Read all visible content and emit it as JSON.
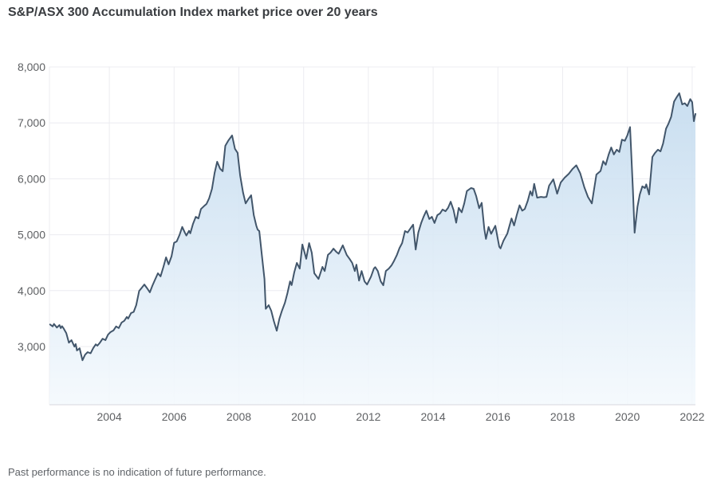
{
  "title": "S&P/ASX 300 Accumulation Index market price over 20 years",
  "footer": {
    "disclaimer": "Past performance is no indication of future performance."
  },
  "chart_data": {
    "type": "area",
    "title": "S&P/ASX 300 Accumulation Index market price over 20 years",
    "xlabel": "",
    "ylabel": "",
    "xlim": [
      2002.15,
      2022.1
    ],
    "ylim": [
      1960,
      8000
    ],
    "x_ticks": [
      2004,
      2006,
      2008,
      2010,
      2012,
      2014,
      2016,
      2018,
      2020,
      2022
    ],
    "y_ticks": [
      3000,
      4000,
      5000,
      6000,
      7000,
      8000
    ],
    "grid": true,
    "legend": false,
    "colors": {
      "line": "#42566b",
      "fill_top": "#bfd8ed",
      "fill_bottom": "#f4f9fd",
      "grid": "#ececf1",
      "axis": "#d7d7de",
      "tick_text": "#5f6164"
    },
    "series": [
      {
        "name": "S&P/ASX 300 Accumulation Index",
        "points": [
          [
            2002.17,
            3395
          ],
          [
            2002.25,
            3360
          ],
          [
            2002.29,
            3405
          ],
          [
            2002.38,
            3340
          ],
          [
            2002.46,
            3385
          ],
          [
            2002.5,
            3330
          ],
          [
            2002.54,
            3365
          ],
          [
            2002.58,
            3330
          ],
          [
            2002.67,
            3240
          ],
          [
            2002.75,
            3070
          ],
          [
            2002.83,
            3115
          ],
          [
            2002.92,
            3000
          ],
          [
            2002.96,
            3045
          ],
          [
            2003.0,
            2930
          ],
          [
            2003.08,
            2970
          ],
          [
            2003.17,
            2755
          ],
          [
            2003.25,
            2855
          ],
          [
            2003.33,
            2900
          ],
          [
            2003.42,
            2880
          ],
          [
            2003.5,
            2970
          ],
          [
            2003.58,
            3040
          ],
          [
            2003.63,
            3015
          ],
          [
            2003.71,
            3070
          ],
          [
            2003.79,
            3140
          ],
          [
            2003.88,
            3115
          ],
          [
            2003.96,
            3215
          ],
          [
            2004.04,
            3260
          ],
          [
            2004.13,
            3290
          ],
          [
            2004.21,
            3360
          ],
          [
            2004.29,
            3330
          ],
          [
            2004.38,
            3430
          ],
          [
            2004.46,
            3460
          ],
          [
            2004.54,
            3530
          ],
          [
            2004.58,
            3500
          ],
          [
            2004.67,
            3600
          ],
          [
            2004.75,
            3620
          ],
          [
            2004.83,
            3740
          ],
          [
            2004.92,
            3995
          ],
          [
            2005.0,
            4050
          ],
          [
            2005.08,
            4110
          ],
          [
            2005.17,
            4040
          ],
          [
            2005.25,
            3970
          ],
          [
            2005.33,
            4090
          ],
          [
            2005.42,
            4210
          ],
          [
            2005.5,
            4310
          ],
          [
            2005.58,
            4255
          ],
          [
            2005.67,
            4425
          ],
          [
            2005.75,
            4595
          ],
          [
            2005.83,
            4470
          ],
          [
            2005.92,
            4615
          ],
          [
            2006.0,
            4855
          ],
          [
            2006.08,
            4880
          ],
          [
            2006.17,
            5000
          ],
          [
            2006.25,
            5140
          ],
          [
            2006.33,
            5040
          ],
          [
            2006.38,
            4985
          ],
          [
            2006.46,
            5070
          ],
          [
            2006.5,
            5025
          ],
          [
            2006.58,
            5190
          ],
          [
            2006.67,
            5320
          ],
          [
            2006.75,
            5290
          ],
          [
            2006.83,
            5460
          ],
          [
            2006.92,
            5510
          ],
          [
            2007.0,
            5550
          ],
          [
            2007.08,
            5650
          ],
          [
            2007.17,
            5820
          ],
          [
            2007.25,
            6105
          ],
          [
            2007.33,
            6305
          ],
          [
            2007.42,
            6180
          ],
          [
            2007.5,
            6135
          ],
          [
            2007.58,
            6590
          ],
          [
            2007.67,
            6680
          ],
          [
            2007.79,
            6775
          ],
          [
            2007.88,
            6535
          ],
          [
            2007.96,
            6465
          ],
          [
            2008.04,
            6060
          ],
          [
            2008.13,
            5750
          ],
          [
            2008.21,
            5560
          ],
          [
            2008.29,
            5635
          ],
          [
            2008.38,
            5705
          ],
          [
            2008.46,
            5350
          ],
          [
            2008.54,
            5160
          ],
          [
            2008.58,
            5090
          ],
          [
            2008.63,
            5065
          ],
          [
            2008.71,
            4640
          ],
          [
            2008.79,
            4210
          ],
          [
            2008.83,
            3675
          ],
          [
            2008.92,
            3740
          ],
          [
            2009.0,
            3640
          ],
          [
            2009.08,
            3455
          ],
          [
            2009.17,
            3283
          ],
          [
            2009.25,
            3495
          ],
          [
            2009.33,
            3640
          ],
          [
            2009.42,
            3780
          ],
          [
            2009.5,
            3955
          ],
          [
            2009.58,
            4165
          ],
          [
            2009.63,
            4100
          ],
          [
            2009.71,
            4325
          ],
          [
            2009.79,
            4495
          ],
          [
            2009.88,
            4395
          ],
          [
            2009.96,
            4825
          ],
          [
            2010.08,
            4570
          ],
          [
            2010.17,
            4850
          ],
          [
            2010.25,
            4680
          ],
          [
            2010.33,
            4310
          ],
          [
            2010.46,
            4210
          ],
          [
            2010.58,
            4425
          ],
          [
            2010.65,
            4350
          ],
          [
            2010.75,
            4640
          ],
          [
            2010.83,
            4680
          ],
          [
            2010.92,
            4750
          ],
          [
            2011.0,
            4700
          ],
          [
            2011.08,
            4660
          ],
          [
            2011.21,
            4810
          ],
          [
            2011.33,
            4640
          ],
          [
            2011.42,
            4565
          ],
          [
            2011.5,
            4495
          ],
          [
            2011.58,
            4350
          ],
          [
            2011.63,
            4465
          ],
          [
            2011.71,
            4180
          ],
          [
            2011.79,
            4350
          ],
          [
            2011.88,
            4165
          ],
          [
            2011.96,
            4110
          ],
          [
            2012.08,
            4250
          ],
          [
            2012.17,
            4395
          ],
          [
            2012.21,
            4420
          ],
          [
            2012.29,
            4350
          ],
          [
            2012.38,
            4165
          ],
          [
            2012.46,
            4095
          ],
          [
            2012.54,
            4350
          ],
          [
            2012.63,
            4395
          ],
          [
            2012.71,
            4450
          ],
          [
            2012.79,
            4530
          ],
          [
            2012.88,
            4640
          ],
          [
            2012.96,
            4760
          ],
          [
            2013.04,
            4850
          ],
          [
            2013.13,
            5065
          ],
          [
            2013.21,
            5040
          ],
          [
            2013.29,
            5105
          ],
          [
            2013.38,
            5180
          ],
          [
            2013.46,
            4735
          ],
          [
            2013.54,
            5040
          ],
          [
            2013.63,
            5210
          ],
          [
            2013.71,
            5330
          ],
          [
            2013.79,
            5430
          ],
          [
            2013.88,
            5280
          ],
          [
            2013.96,
            5320
          ],
          [
            2014.04,
            5210
          ],
          [
            2014.13,
            5350
          ],
          [
            2014.21,
            5380
          ],
          [
            2014.29,
            5450
          ],
          [
            2014.38,
            5420
          ],
          [
            2014.46,
            5480
          ],
          [
            2014.54,
            5590
          ],
          [
            2014.63,
            5440
          ],
          [
            2014.71,
            5215
          ],
          [
            2014.79,
            5480
          ],
          [
            2014.88,
            5400
          ],
          [
            2014.96,
            5560
          ],
          [
            2015.04,
            5780
          ],
          [
            2015.17,
            5835
          ],
          [
            2015.25,
            5820
          ],
          [
            2015.33,
            5690
          ],
          [
            2015.42,
            5475
          ],
          [
            2015.5,
            5570
          ],
          [
            2015.58,
            5100
          ],
          [
            2015.63,
            4925
          ],
          [
            2015.71,
            5140
          ],
          [
            2015.79,
            5015
          ],
          [
            2015.92,
            5160
          ],
          [
            2016.04,
            4785
          ],
          [
            2016.08,
            4755
          ],
          [
            2016.17,
            4890
          ],
          [
            2016.29,
            5020
          ],
          [
            2016.42,
            5290
          ],
          [
            2016.5,
            5165
          ],
          [
            2016.58,
            5350
          ],
          [
            2016.67,
            5525
          ],
          [
            2016.75,
            5430
          ],
          [
            2016.83,
            5460
          ],
          [
            2016.92,
            5605
          ],
          [
            2017.0,
            5777
          ],
          [
            2017.06,
            5700
          ],
          [
            2017.12,
            5910
          ],
          [
            2017.21,
            5663
          ],
          [
            2017.33,
            5677
          ],
          [
            2017.42,
            5670
          ],
          [
            2017.5,
            5677
          ],
          [
            2017.58,
            5877
          ],
          [
            2017.71,
            5990
          ],
          [
            2017.83,
            5734
          ],
          [
            2017.94,
            5934
          ],
          [
            2018.06,
            6020
          ],
          [
            2018.19,
            6090
          ],
          [
            2018.31,
            6180
          ],
          [
            2018.42,
            6240
          ],
          [
            2018.54,
            6100
          ],
          [
            2018.67,
            5848
          ],
          [
            2018.78,
            5677
          ],
          [
            2018.9,
            5560
          ],
          [
            2019.04,
            6075
          ],
          [
            2019.17,
            6140
          ],
          [
            2019.25,
            6315
          ],
          [
            2019.33,
            6250
          ],
          [
            2019.42,
            6435
          ],
          [
            2019.5,
            6560
          ],
          [
            2019.58,
            6435
          ],
          [
            2019.67,
            6520
          ],
          [
            2019.75,
            6480
          ],
          [
            2019.83,
            6700
          ],
          [
            2019.92,
            6680
          ],
          [
            2020.0,
            6780
          ],
          [
            2020.08,
            6925
          ],
          [
            2020.17,
            5800
          ],
          [
            2020.22,
            5035
          ],
          [
            2020.31,
            5500
          ],
          [
            2020.38,
            5720
          ],
          [
            2020.46,
            5865
          ],
          [
            2020.54,
            5835
          ],
          [
            2020.58,
            5900
          ],
          [
            2020.67,
            5720
          ],
          [
            2020.77,
            6390
          ],
          [
            2020.85,
            6460
          ],
          [
            2020.94,
            6520
          ],
          [
            2021.02,
            6490
          ],
          [
            2021.1,
            6630
          ],
          [
            2021.19,
            6895
          ],
          [
            2021.27,
            6990
          ],
          [
            2021.35,
            7105
          ],
          [
            2021.44,
            7380
          ],
          [
            2021.52,
            7460
          ],
          [
            2021.6,
            7530
          ],
          [
            2021.69,
            7330
          ],
          [
            2021.77,
            7350
          ],
          [
            2021.85,
            7300
          ],
          [
            2021.94,
            7425
          ],
          [
            2022.0,
            7370
          ],
          [
            2022.05,
            7030
          ],
          [
            2022.1,
            7160
          ]
        ]
      }
    ]
  }
}
